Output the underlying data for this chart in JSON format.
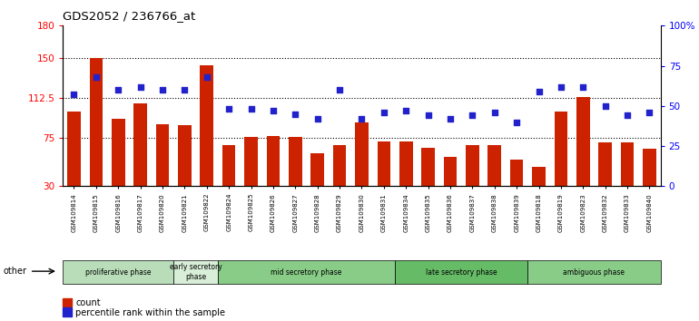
{
  "title": "GDS2052 / 236766_at",
  "samples": [
    "GSM109814",
    "GSM109815",
    "GSM109816",
    "GSM109817",
    "GSM109820",
    "GSM109821",
    "GSM109822",
    "GSM109824",
    "GSM109825",
    "GSM109826",
    "GSM109827",
    "GSM109828",
    "GSM109829",
    "GSM109830",
    "GSM109831",
    "GSM109834",
    "GSM109835",
    "GSM109836",
    "GSM109837",
    "GSM109838",
    "GSM109839",
    "GSM109818",
    "GSM109819",
    "GSM109823",
    "GSM109832",
    "GSM109833",
    "GSM109840"
  ],
  "counts": [
    100,
    150,
    93,
    107,
    88,
    87,
    143,
    68,
    76,
    77,
    76,
    61,
    68,
    90,
    72,
    72,
    66,
    57,
    68,
    68,
    55,
    48,
    100,
    113,
    71,
    71,
    65
  ],
  "percentiles": [
    57,
    68,
    60,
    62,
    60,
    60,
    68,
    48,
    48,
    47,
    45,
    42,
    60,
    42,
    46,
    47,
    44,
    42,
    44,
    46,
    40,
    59,
    62,
    62,
    50,
    44,
    46
  ],
  "phases": [
    {
      "label": "proliferative phase",
      "start": 0,
      "end": 5,
      "color": "#b8ddb8"
    },
    {
      "label": "early secretory\nphase",
      "start": 5,
      "end": 7,
      "color": "#d8eed8"
    },
    {
      "label": "mid secretory phase",
      "start": 7,
      "end": 15,
      "color": "#88cc88"
    },
    {
      "label": "late secretory phase",
      "start": 15,
      "end": 21,
      "color": "#66bb66"
    },
    {
      "label": "ambiguous phase",
      "start": 21,
      "end": 27,
      "color": "#88cc88"
    }
  ],
  "ylim_left": [
    30,
    180
  ],
  "ylim_right": [
    0,
    100
  ],
  "yticks_left": [
    30,
    75,
    112.5,
    150,
    180
  ],
  "ytick_labels_left": [
    "30",
    "75",
    "112.5",
    "150",
    "180"
  ],
  "yticks_right": [
    0,
    25,
    50,
    75,
    100
  ],
  "ytick_labels_right": [
    "0",
    "25",
    "50",
    "75",
    "100%"
  ],
  "bar_color": "#cc2200",
  "dot_color": "#2222cc",
  "bg_color": "#ffffff",
  "grid_values": [
    75,
    112.5,
    150
  ]
}
